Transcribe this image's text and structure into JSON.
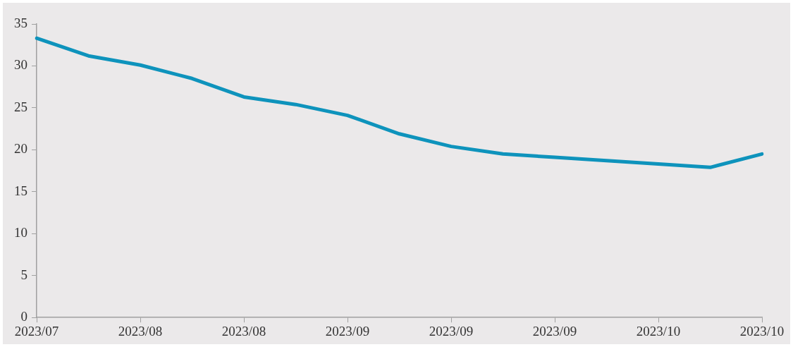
{
  "chart_data": {
    "type": "line",
    "categories": [
      "2023/07",
      null,
      "2023/08",
      null,
      "2023/08",
      null,
      "2023/09",
      null,
      "2023/09",
      null,
      "2023/09",
      null,
      "2023/10",
      null,
      "2023/10"
    ],
    "series": [
      {
        "color": "#0e93bc",
        "values": [
          33.3,
          31.2,
          30.1,
          28.5,
          26.3,
          25.4,
          24.1,
          21.9,
          20.4,
          19.5,
          19.1,
          18.7,
          18.3,
          17.9,
          19.5
        ]
      }
    ],
    "ylim": [
      0,
      35
    ],
    "yticks": [
      0,
      5,
      10,
      15,
      20,
      25,
      30,
      35
    ],
    "grid": false,
    "legend": false,
    "marker": "none",
    "line_style": "solid"
  }
}
